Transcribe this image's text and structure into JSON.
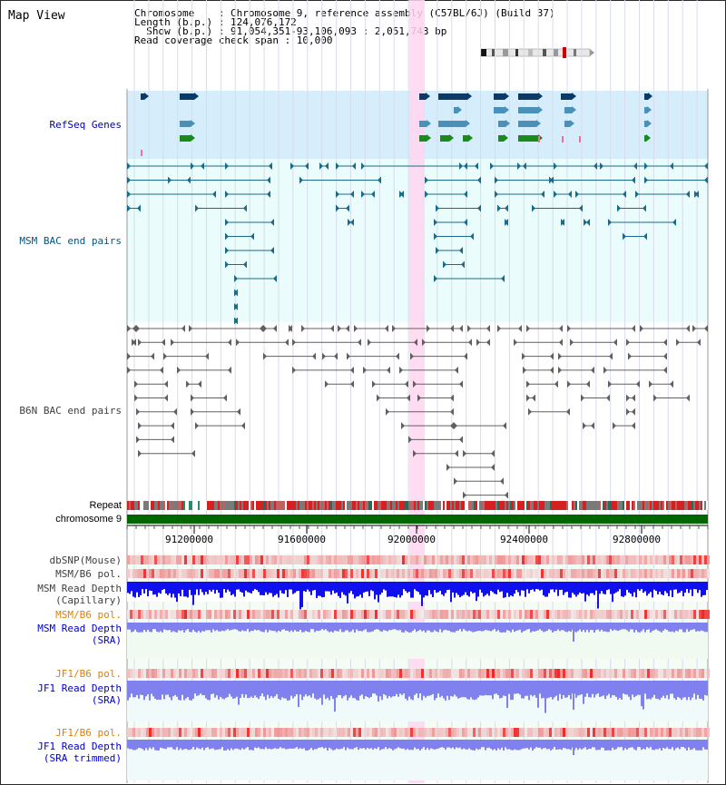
{
  "view_title": "Map View",
  "info": {
    "chromosome_line": "Chromosome    : Chromosome 9, reference assembly (C57BL/6J) (Build 37)",
    "length_line": "Length (b.p.) : 124,076,172",
    "show_line": "  Show (b.p.) : 91,054,351-93,106,093 : 2,051,743 bp",
    "coverage_line": "Read coverage check span : 10,000"
  },
  "ruler": {
    "ticks": [
      "91200000",
      "91600000",
      "92000000",
      "92400000",
      "92800000"
    ]
  },
  "tracks": {
    "refseq": "RefSeq Genes",
    "msm_bac": "MSM BAC end pairs",
    "b6n_bac": "B6N BAC end pairs",
    "repeat": "Repeat",
    "chromosome": "chromosome 9",
    "dbsnp": "dbSNP(Mouse)",
    "msm_b6_pol_1": "MSM/B6 pol.",
    "msm_depth_cap_1": "MSM Read Depth",
    "msm_depth_cap_2": "(Capillary)",
    "msm_b6_pol_2": "MSM/B6 pol.",
    "msm_depth_sra_1": "MSM Read Depth",
    "msm_depth_sra_2": "(SRA)",
    "jf1_b6_pol_1": "JF1/B6 pol.",
    "jf1_depth_sra_1": "JF1 Read Depth",
    "jf1_depth_sra_2": "(SRA)",
    "jf1_b6_pol_2": "JF1/B6 pol.",
    "jf1_depth_trim_1": "JF1 Read Depth",
    "jf1_depth_trim_2": "(SRA trimmed)"
  },
  "colors": {
    "refseq_label": "#0000aa",
    "msm_bac_label": "#005580",
    "b6n_label": "#404040",
    "orange_label": "#e08000",
    "blue_label": "#0000cc",
    "highlight": "#ffd6f0",
    "chromosome_bar": "#006600",
    "depth_capillary": "#1010ee",
    "depth_sra": "#8080ee"
  }
}
